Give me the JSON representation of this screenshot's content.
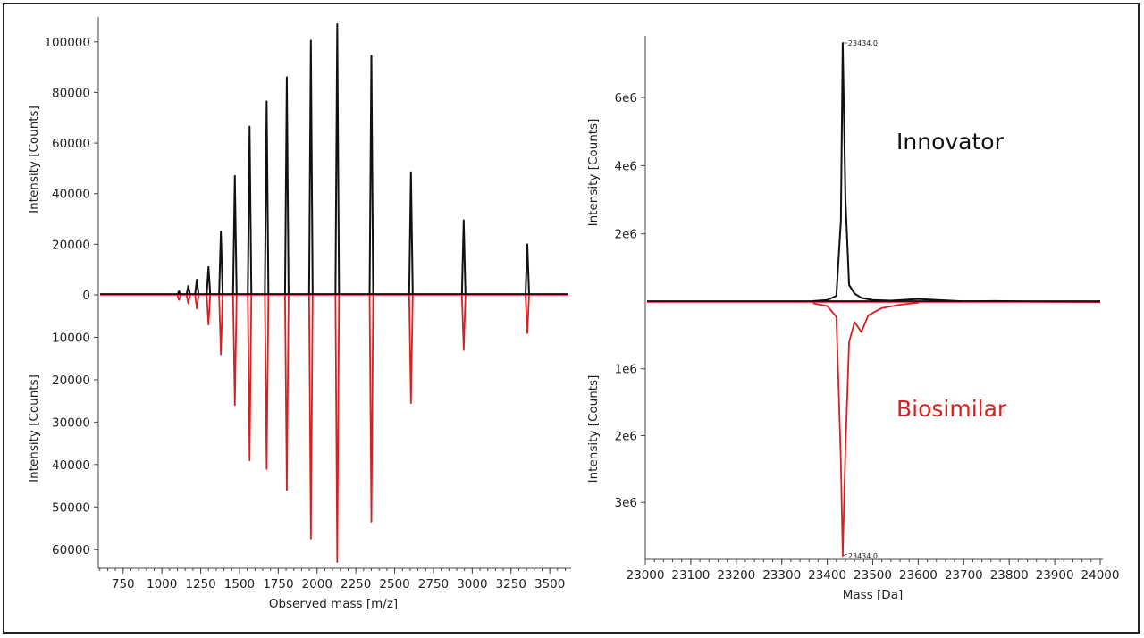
{
  "chart_data": [
    {
      "type": "line",
      "title": "",
      "xlabel": "Observed mass [m/z]",
      "ylabel_top": "Intensity [Counts]",
      "ylabel_bottom": "Intensity [Counts]",
      "xlim": [
        590,
        3620
      ],
      "ylim_top": [
        0,
        107000
      ],
      "ylim_bottom": [
        0,
        63000
      ],
      "x_ticks": [
        750,
        1000,
        1250,
        1500,
        1750,
        2000,
        2250,
        2500,
        2750,
        3000,
        3250,
        3500
      ],
      "x_tick_labels": [
        "750",
        "1000",
        "1250",
        "1500",
        "1750",
        "2000",
        "2250",
        "2500",
        "2750",
        "3000",
        "3250",
        "3500"
      ],
      "y_ticks_top": [
        0,
        20000,
        40000,
        60000,
        80000,
        100000
      ],
      "y_tick_labels_top": [
        "0",
        "20000",
        "40000",
        "60000",
        "80000",
        "100000"
      ],
      "y_ticks_bottom": [
        10000,
        20000,
        30000,
        40000,
        50000,
        60000
      ],
      "y_tick_labels_bottom": [
        "10000",
        "20000",
        "30000",
        "40000",
        "50000",
        "60000"
      ],
      "series": [
        {
          "name": "Innovator",
          "color": "#111111",
          "x": [
            1110,
            1170,
            1225,
            1300,
            1380,
            1470,
            1565,
            1675,
            1805,
            1960,
            2130,
            2350,
            2605,
            2945,
            3355
          ],
          "values": [
            1500,
            3500,
            6000,
            11000,
            25000,
            47000,
            66500,
            76500,
            86000,
            100500,
            107000,
            94500,
            48500,
            29500,
            20000
          ]
        },
        {
          "name": "Biosimilar",
          "color": "#d42121",
          "x": [
            1110,
            1170,
            1225,
            1300,
            1380,
            1470,
            1565,
            1675,
            1805,
            1960,
            2130,
            2350,
            2605,
            2945,
            3355
          ],
          "values": [
            1200,
            2000,
            3200,
            7000,
            14000,
            26000,
            39000,
            41000,
            46000,
            57500,
            63000,
            53500,
            25500,
            13000,
            9000
          ]
        }
      ]
    },
    {
      "type": "line",
      "title": "",
      "xlabel": "Mass [Da]",
      "ylabel_top": "Intensity [Counts]",
      "ylabel_bottom": "Intensity [Counts]",
      "xlim": [
        23000,
        24000
      ],
      "ylim_top": [
        0,
        7600000
      ],
      "ylim_bottom": [
        0,
        3800000
      ],
      "x_ticks": [
        23000,
        23100,
        23200,
        23300,
        23400,
        23500,
        23600,
        23700,
        23800,
        23900,
        24000
      ],
      "x_tick_labels": [
        "23000",
        "23100",
        "23200",
        "23300",
        "23400",
        "23500",
        "23600",
        "23700",
        "23800",
        "23900",
        "24000"
      ],
      "y_ticks_top": [
        2000000,
        4000000,
        6000000
      ],
      "y_tick_labels_top": [
        "2e6",
        "4e6",
        "6e6"
      ],
      "y_ticks_bottom": [
        1000000,
        2000000,
        3000000
      ],
      "y_tick_labels_bottom": [
        "1e6",
        "2e6",
        "3e6"
      ],
      "series": [
        {
          "name": "Innovator",
          "color": "#111111",
          "x": [
            23370,
            23400,
            23420,
            23430,
            23434,
            23440,
            23448,
            23460,
            23475,
            23500,
            23540,
            23600,
            23700,
            23770,
            23850,
            24000
          ],
          "values": [
            30000,
            60000,
            180000,
            2400000,
            7600000,
            3000000,
            500000,
            250000,
            120000,
            60000,
            40000,
            90000,
            20000,
            30000,
            10000,
            0
          ]
        },
        {
          "name": "Biosimilar",
          "color": "#d42121",
          "x": [
            23370,
            23400,
            23420,
            23430,
            23434,
            23440,
            23448,
            23460,
            23475,
            23490,
            23520,
            23560,
            23600
          ],
          "values": [
            20000,
            60000,
            220000,
            2400000,
            3800000,
            2200000,
            600000,
            300000,
            450000,
            200000,
            90000,
            40000,
            10000
          ]
        }
      ],
      "annotations": [
        {
          "text": "23434.0",
          "series": "Innovator",
          "x": 23434
        },
        {
          "text": "23434.0",
          "series": "Biosimilar",
          "x": 23434
        }
      ],
      "labels": {
        "top": "Innovator",
        "bottom": "Biosimilar"
      }
    }
  ]
}
